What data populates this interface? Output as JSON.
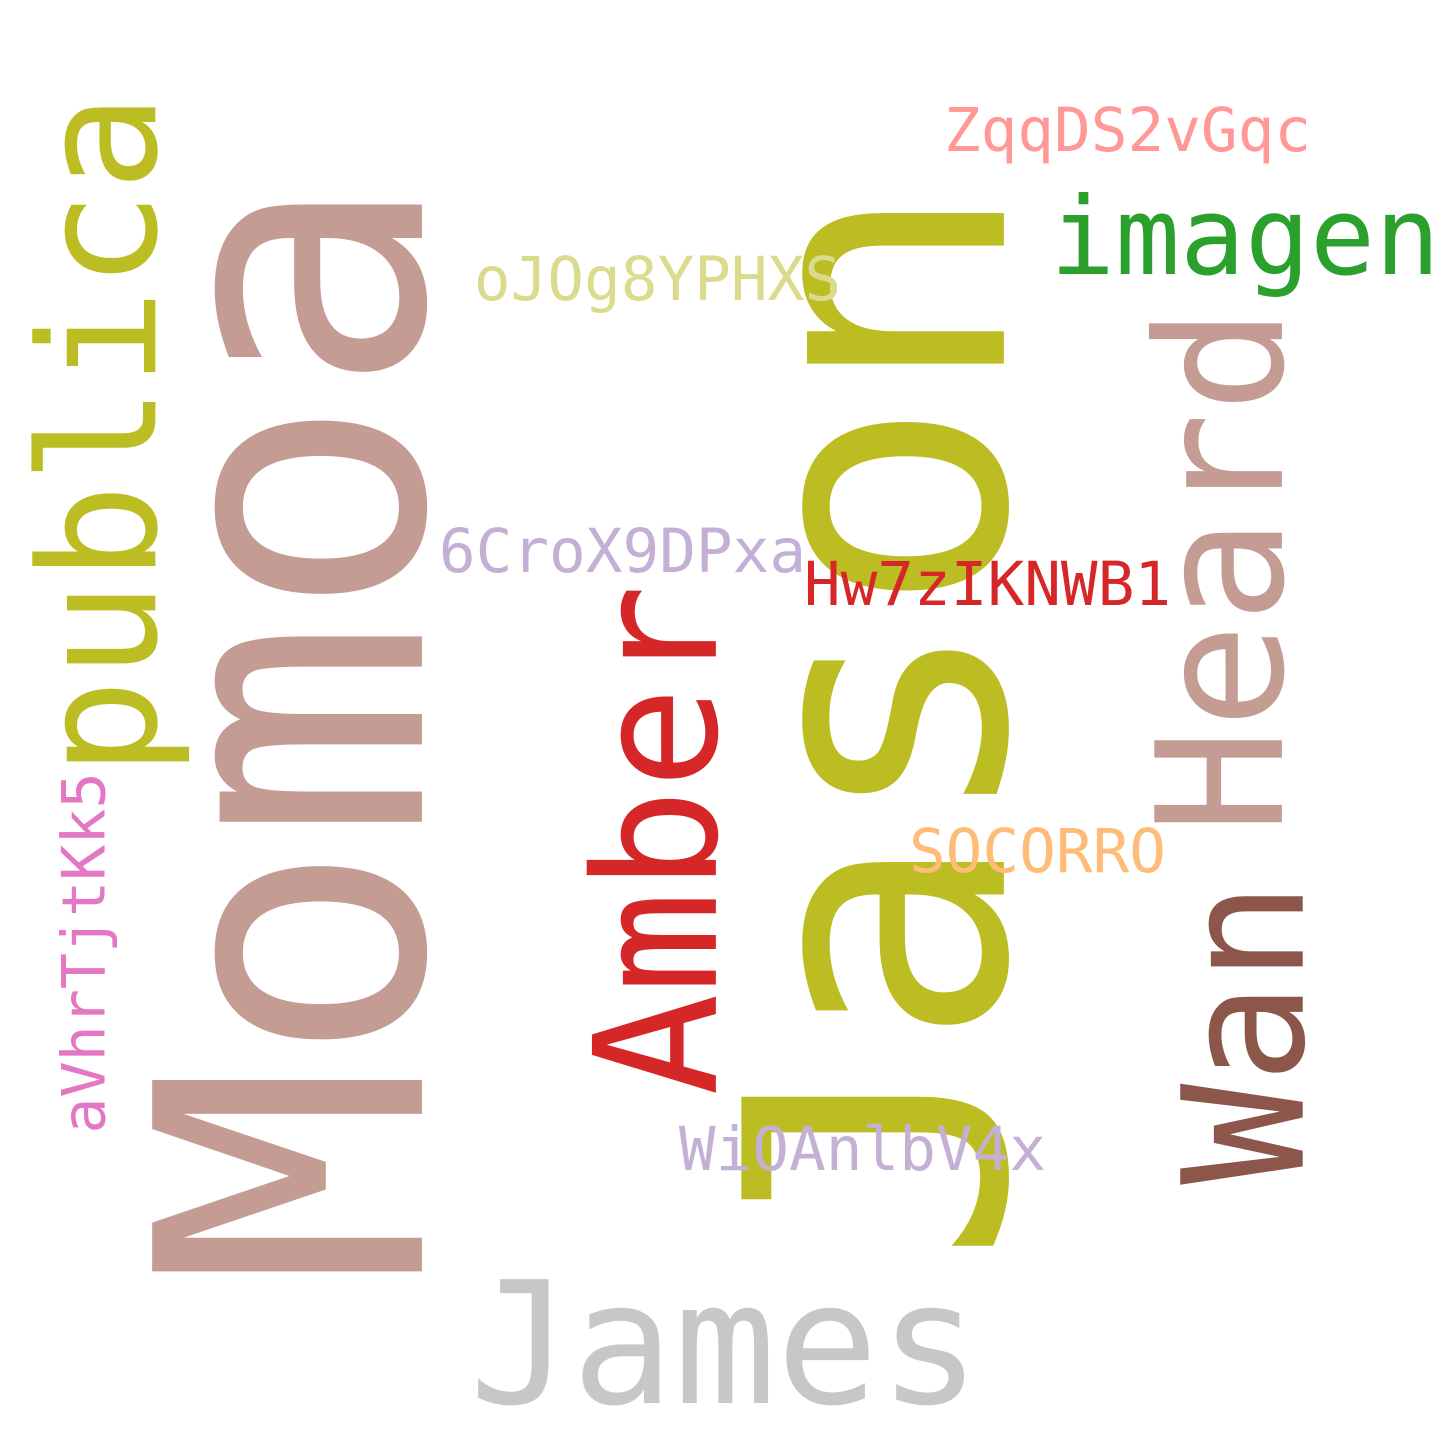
{
  "words": [
    {
      "key": "jason",
      "text": "Jason",
      "color": "#bcbd22",
      "orientation": "vertical"
    },
    {
      "key": "momoa",
      "text": "Momoa",
      "color": "#c49c94",
      "orientation": "vertical"
    },
    {
      "key": "publica",
      "text": "publica",
      "color": "#bcbd22",
      "orientation": "vertical"
    },
    {
      "key": "amber",
      "text": "Amber",
      "color": "#d62728",
      "orientation": "vertical"
    },
    {
      "key": "heard",
      "text": "Heard",
      "color": "#c49c94",
      "orientation": "vertical"
    },
    {
      "key": "wan",
      "text": "Wan",
      "color": "#8c564b",
      "orientation": "vertical"
    },
    {
      "key": "avhr",
      "text": "aVhrTjtKk5",
      "color": "#e377c2",
      "orientation": "vertical"
    },
    {
      "key": "imagen",
      "text": "imagen",
      "color": "#2ca02c",
      "orientation": "horizontal"
    },
    {
      "key": "zqq",
      "text": "ZqqDS2vGqc",
      "color": "#ff9896",
      "orientation": "horizontal"
    },
    {
      "key": "ojo",
      "text": "oJOg8YPHXS",
      "color": "#dbdb8d",
      "orientation": "horizontal"
    },
    {
      "key": "six",
      "text": "6CroX9DPxa",
      "color": "#c5b0d5",
      "orientation": "horizontal"
    },
    {
      "key": "hw7",
      "text": "Hw7zIKNWB1",
      "color": "#d62728",
      "orientation": "horizontal"
    },
    {
      "key": "socorro",
      "text": "SOCORRO",
      "color": "#ffbb78",
      "orientation": "horizontal"
    },
    {
      "key": "wio",
      "text": "WiOAnlbV4x",
      "color": "#c5b0d5",
      "orientation": "horizontal"
    },
    {
      "key": "james",
      "text": "James",
      "color": "#c7c7c7",
      "orientation": "horizontal"
    }
  ]
}
